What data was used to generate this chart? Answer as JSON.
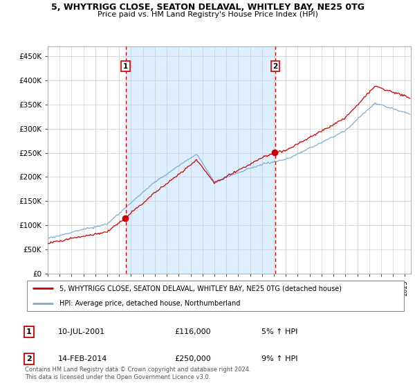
{
  "title_line1": "5, WHYTRIGG CLOSE, SEATON DELAVAL, WHITLEY BAY, NE25 0TG",
  "title_line2": "Price paid vs. HM Land Registry's House Price Index (HPI)",
  "ylim": [
    0,
    470000
  ],
  "yticks": [
    0,
    50000,
    100000,
    150000,
    200000,
    250000,
    300000,
    350000,
    400000,
    450000
  ],
  "sale1_date_num": 2001.54,
  "sale2_date_num": 2014.12,
  "red_line_color": "#cc0000",
  "blue_line_color": "#7ab0d4",
  "shade_color": "#ddeeff",
  "vline_color": "#cc0000",
  "grid_color": "#cccccc",
  "legend_entry1": "5, WHYTRIGG CLOSE, SEATON DELAVAL, WHITLEY BAY, NE25 0TG (detached house)",
  "legend_entry2": "HPI: Average price, detached house, Northumberland",
  "table_row1": [
    "1",
    "10-JUL-2001",
    "£116,000",
    "5% ↑ HPI"
  ],
  "table_row2": [
    "2",
    "14-FEB-2014",
    "£250,000",
    "9% ↑ HPI"
  ],
  "footnote": "Contains HM Land Registry data © Crown copyright and database right 2024.\nThis data is licensed under the Open Government Licence v3.0.",
  "xmin": 1995.0,
  "xmax": 2025.5,
  "fig_width": 6.0,
  "fig_height": 5.6,
  "dpi": 100
}
